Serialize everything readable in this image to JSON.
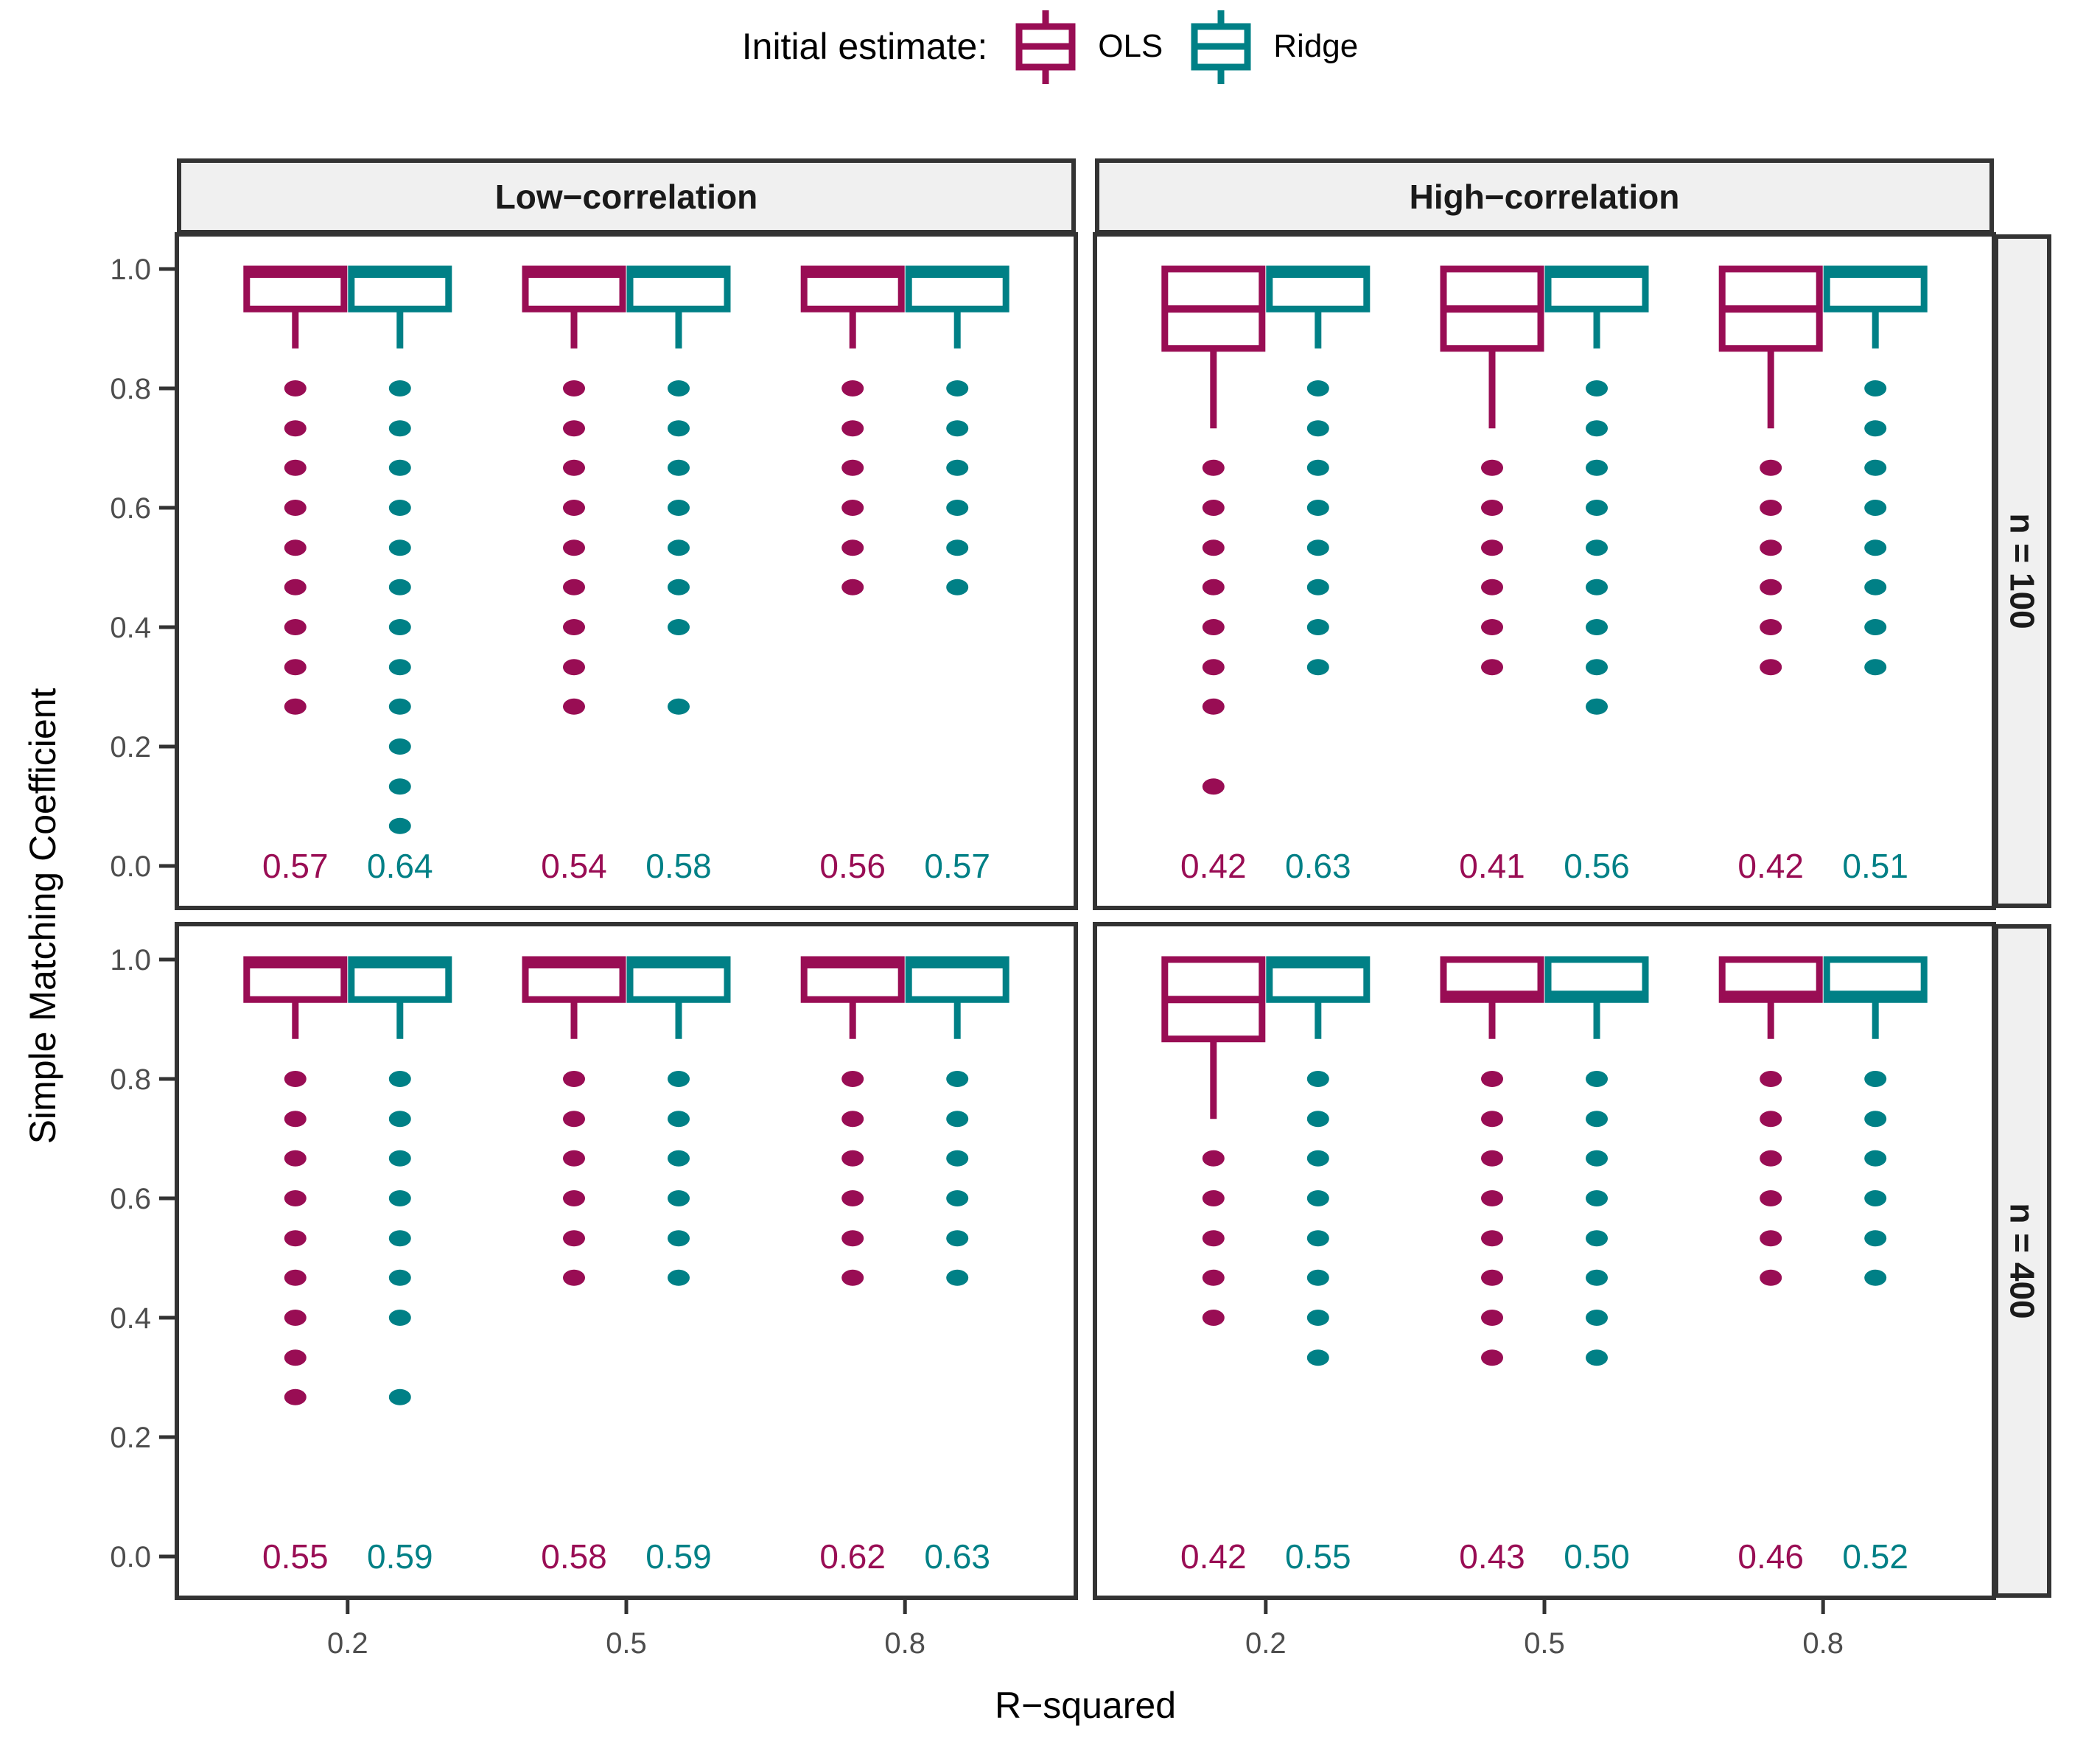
{
  "legend": {
    "title": "Initial estimate:",
    "items": [
      {
        "label": "OLS",
        "color": "#990D54"
      },
      {
        "label": "Ridge",
        "color": "#008086"
      }
    ]
  },
  "chart_data": {
    "type": "boxplot",
    "x_label": "R−squared",
    "y_label": "Simple Matching Coefficient",
    "ylim": [
      0.0,
      1.0
    ],
    "y_ticks": [
      1.0,
      0.8,
      0.6,
      0.4,
      0.2,
      0.0
    ],
    "categories": [
      "0.2",
      "0.5",
      "0.8"
    ],
    "series": [
      "OLS",
      "Ridge"
    ],
    "series_colors": {
      "OLS": "#990D54",
      "Ridge": "#008086"
    },
    "facet_columns": [
      "Low−correlation",
      "High−correlation"
    ],
    "facet_rows": [
      "n = 100",
      "n = 400"
    ],
    "legend_position": "top",
    "grid": false,
    "panels": [
      {
        "facet_row": "n = 100",
        "facet_col": "Low−correlation",
        "groups": [
          {
            "category": "0.2",
            "boxes": [
              {
                "series": "OLS",
                "q1": 0.933,
                "median": 1.0,
                "q3": 1.0,
                "whisker_low": 0.867,
                "whisker_high": 1.0,
                "outliers": [
                  0.8,
                  0.733,
                  0.667,
                  0.6,
                  0.533,
                  0.467,
                  0.4,
                  0.333,
                  0.267
                ],
                "mean_label": "0.57"
              },
              {
                "series": "Ridge",
                "q1": 0.933,
                "median": 1.0,
                "q3": 1.0,
                "whisker_low": 0.867,
                "whisker_high": 1.0,
                "outliers": [
                  0.8,
                  0.733,
                  0.667,
                  0.6,
                  0.533,
                  0.467,
                  0.4,
                  0.333,
                  0.267,
                  0.2,
                  0.133,
                  0.067
                ],
                "mean_label": "0.64"
              }
            ]
          },
          {
            "category": "0.5",
            "boxes": [
              {
                "series": "OLS",
                "q1": 0.933,
                "median": 1.0,
                "q3": 1.0,
                "whisker_low": 0.867,
                "whisker_high": 1.0,
                "outliers": [
                  0.8,
                  0.733,
                  0.667,
                  0.6,
                  0.533,
                  0.467,
                  0.4,
                  0.333,
                  0.267
                ],
                "mean_label": "0.54"
              },
              {
                "series": "Ridge",
                "q1": 0.933,
                "median": 1.0,
                "q3": 1.0,
                "whisker_low": 0.867,
                "whisker_high": 1.0,
                "outliers": [
                  0.8,
                  0.733,
                  0.667,
                  0.6,
                  0.533,
                  0.467,
                  0.4,
                  0.267
                ],
                "mean_label": "0.58"
              }
            ]
          },
          {
            "category": "0.8",
            "boxes": [
              {
                "series": "OLS",
                "q1": 0.933,
                "median": 1.0,
                "q3": 1.0,
                "whisker_low": 0.867,
                "whisker_high": 1.0,
                "outliers": [
                  0.8,
                  0.733,
                  0.667,
                  0.6,
                  0.533,
                  0.467
                ],
                "mean_label": "0.56"
              },
              {
                "series": "Ridge",
                "q1": 0.933,
                "median": 1.0,
                "q3": 1.0,
                "whisker_low": 0.867,
                "whisker_high": 1.0,
                "outliers": [
                  0.8,
                  0.733,
                  0.667,
                  0.6,
                  0.533,
                  0.467
                ],
                "mean_label": "0.57"
              }
            ]
          }
        ]
      },
      {
        "facet_row": "n = 100",
        "facet_col": "High−correlation",
        "groups": [
          {
            "category": "0.2",
            "boxes": [
              {
                "series": "OLS",
                "q1": 0.867,
                "median": 0.933,
                "q3": 1.0,
                "whisker_low": 0.733,
                "whisker_high": 1.0,
                "outliers": [
                  0.667,
                  0.6,
                  0.533,
                  0.467,
                  0.4,
                  0.333,
                  0.267,
                  0.133
                ],
                "mean_label": "0.42"
              },
              {
                "series": "Ridge",
                "q1": 0.933,
                "median": 1.0,
                "q3": 1.0,
                "whisker_low": 0.867,
                "whisker_high": 1.0,
                "outliers": [
                  0.8,
                  0.733,
                  0.667,
                  0.6,
                  0.533,
                  0.467,
                  0.4,
                  0.333
                ],
                "mean_label": "0.63"
              }
            ]
          },
          {
            "category": "0.5",
            "boxes": [
              {
                "series": "OLS",
                "q1": 0.867,
                "median": 0.933,
                "q3": 1.0,
                "whisker_low": 0.733,
                "whisker_high": 1.0,
                "outliers": [
                  0.667,
                  0.6,
                  0.533,
                  0.467,
                  0.4,
                  0.333
                ],
                "mean_label": "0.41"
              },
              {
                "series": "Ridge",
                "q1": 0.933,
                "median": 1.0,
                "q3": 1.0,
                "whisker_low": 0.867,
                "whisker_high": 1.0,
                "outliers": [
                  0.8,
                  0.733,
                  0.667,
                  0.6,
                  0.533,
                  0.467,
                  0.4,
                  0.333,
                  0.267
                ],
                "mean_label": "0.56"
              }
            ]
          },
          {
            "category": "0.8",
            "boxes": [
              {
                "series": "OLS",
                "q1": 0.867,
                "median": 0.933,
                "q3": 1.0,
                "whisker_low": 0.733,
                "whisker_high": 1.0,
                "outliers": [
                  0.667,
                  0.6,
                  0.533,
                  0.467,
                  0.4,
                  0.333
                ],
                "mean_label": "0.42"
              },
              {
                "series": "Ridge",
                "q1": 0.933,
                "median": 1.0,
                "q3": 1.0,
                "whisker_low": 0.867,
                "whisker_high": 1.0,
                "outliers": [
                  0.8,
                  0.733,
                  0.667,
                  0.6,
                  0.533,
                  0.467,
                  0.4,
                  0.333
                ],
                "mean_label": "0.51"
              }
            ]
          }
        ]
      },
      {
        "facet_row": "n = 400",
        "facet_col": "Low−correlation",
        "groups": [
          {
            "category": "0.2",
            "boxes": [
              {
                "series": "OLS",
                "q1": 0.933,
                "median": 1.0,
                "q3": 1.0,
                "whisker_low": 0.867,
                "whisker_high": 1.0,
                "outliers": [
                  0.8,
                  0.733,
                  0.667,
                  0.6,
                  0.533,
                  0.467,
                  0.4,
                  0.333,
                  0.267
                ],
                "mean_label": "0.55"
              },
              {
                "series": "Ridge",
                "q1": 0.933,
                "median": 1.0,
                "q3": 1.0,
                "whisker_low": 0.867,
                "whisker_high": 1.0,
                "outliers": [
                  0.8,
                  0.733,
                  0.667,
                  0.6,
                  0.533,
                  0.467,
                  0.4,
                  0.267
                ],
                "mean_label": "0.59"
              }
            ]
          },
          {
            "category": "0.5",
            "boxes": [
              {
                "series": "OLS",
                "q1": 0.933,
                "median": 1.0,
                "q3": 1.0,
                "whisker_low": 0.867,
                "whisker_high": 1.0,
                "outliers": [
                  0.8,
                  0.733,
                  0.667,
                  0.6,
                  0.533,
                  0.467
                ],
                "mean_label": "0.58"
              },
              {
                "series": "Ridge",
                "q1": 0.933,
                "median": 1.0,
                "q3": 1.0,
                "whisker_low": 0.867,
                "whisker_high": 1.0,
                "outliers": [
                  0.8,
                  0.733,
                  0.667,
                  0.6,
                  0.533,
                  0.467
                ],
                "mean_label": "0.59"
              }
            ]
          },
          {
            "category": "0.8",
            "boxes": [
              {
                "series": "OLS",
                "q1": 0.933,
                "median": 1.0,
                "q3": 1.0,
                "whisker_low": 0.867,
                "whisker_high": 1.0,
                "outliers": [
                  0.8,
                  0.733,
                  0.667,
                  0.6,
                  0.533,
                  0.467
                ],
                "mean_label": "0.62"
              },
              {
                "series": "Ridge",
                "q1": 0.933,
                "median": 1.0,
                "q3": 1.0,
                "whisker_low": 0.867,
                "whisker_high": 1.0,
                "outliers": [
                  0.8,
                  0.733,
                  0.667,
                  0.6,
                  0.533,
                  0.467
                ],
                "mean_label": "0.63"
              }
            ]
          }
        ]
      },
      {
        "facet_row": "n = 400",
        "facet_col": "High−correlation",
        "groups": [
          {
            "category": "0.2",
            "boxes": [
              {
                "series": "OLS",
                "q1": 0.867,
                "median": 0.933,
                "q3": 1.0,
                "whisker_low": 0.733,
                "whisker_high": 1.0,
                "outliers": [
                  0.667,
                  0.6,
                  0.533,
                  0.467,
                  0.4
                ],
                "mean_label": "0.42"
              },
              {
                "series": "Ridge",
                "q1": 0.933,
                "median": 1.0,
                "q3": 1.0,
                "whisker_low": 0.867,
                "whisker_high": 1.0,
                "outliers": [
                  0.8,
                  0.733,
                  0.667,
                  0.6,
                  0.533,
                  0.467,
                  0.4,
                  0.333
                ],
                "mean_label": "0.55"
              }
            ]
          },
          {
            "category": "0.5",
            "boxes": [
              {
                "series": "OLS",
                "q1": 0.933,
                "median": 0.933,
                "q3": 1.0,
                "whisker_low": 0.867,
                "whisker_high": 1.0,
                "outliers": [
                  0.8,
                  0.733,
                  0.667,
                  0.6,
                  0.533,
                  0.467,
                  0.4,
                  0.333
                ],
                "mean_label": "0.43"
              },
              {
                "series": "Ridge",
                "q1": 0.933,
                "median": 0.933,
                "q3": 1.0,
                "whisker_low": 0.867,
                "whisker_high": 1.0,
                "outliers": [
                  0.8,
                  0.733,
                  0.667,
                  0.6,
                  0.533,
                  0.467,
                  0.4,
                  0.333
                ],
                "mean_label": "0.50"
              }
            ]
          },
          {
            "category": "0.8",
            "boxes": [
              {
                "series": "OLS",
                "q1": 0.933,
                "median": 0.933,
                "q3": 1.0,
                "whisker_low": 0.867,
                "whisker_high": 1.0,
                "outliers": [
                  0.8,
                  0.733,
                  0.667,
                  0.6,
                  0.533,
                  0.467
                ],
                "mean_label": "0.46"
              },
              {
                "series": "Ridge",
                "q1": 0.933,
                "median": 0.933,
                "q3": 1.0,
                "whisker_low": 0.867,
                "whisker_high": 1.0,
                "outliers": [
                  0.8,
                  0.733,
                  0.667,
                  0.6,
                  0.533,
                  0.467
                ],
                "mean_label": "0.52"
              }
            ]
          }
        ]
      }
    ]
  }
}
